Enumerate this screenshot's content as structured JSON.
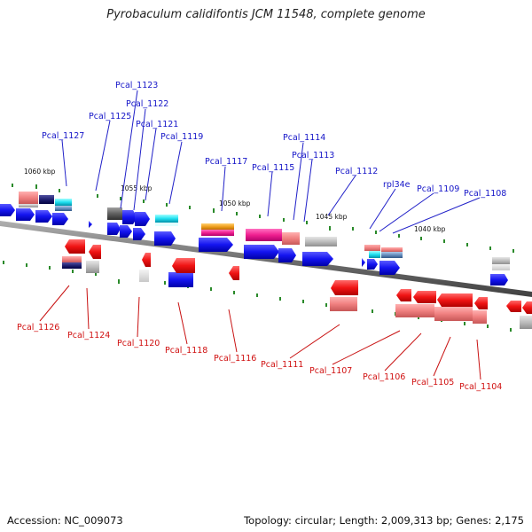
{
  "title": "Pyrobaculum calidifontis JCM 11548, complete genome",
  "footer": {
    "accession": "Accession: NC_009073",
    "topology": "Topology: circular; Length: 2,009,313 bp; Genes: 2,175"
  },
  "ticks": [
    "1060 kbp",
    "1055 kbp",
    "1050 kbp",
    "1045 kbp",
    "1040 kbp"
  ],
  "genes_top": [
    "Pcal_1123",
    "Pcal_1122",
    "Pcal_1125",
    "Pcal_1121",
    "Pcal_1127",
    "Pcal_1119",
    "Pcal_1114",
    "Pcal_1113",
    "Pcal_1117",
    "Pcal_1115",
    "Pcal_1112",
    "rpl34e",
    "Pcal_1109",
    "Pcal_1108"
  ],
  "genes_bottom": [
    "Pcal_1126",
    "Pcal_1124",
    "Pcal_1120",
    "Pcal_1118",
    "Pcal_1116",
    "Pcal_1111",
    "Pcal_1107",
    "Pcal_1106",
    "Pcal_1105",
    "Pcal_1104"
  ],
  "colors": {
    "forward": "#1010ee",
    "reverse": "#ee1010",
    "backbone": "#777777",
    "tick": "#2a8a2a"
  }
}
